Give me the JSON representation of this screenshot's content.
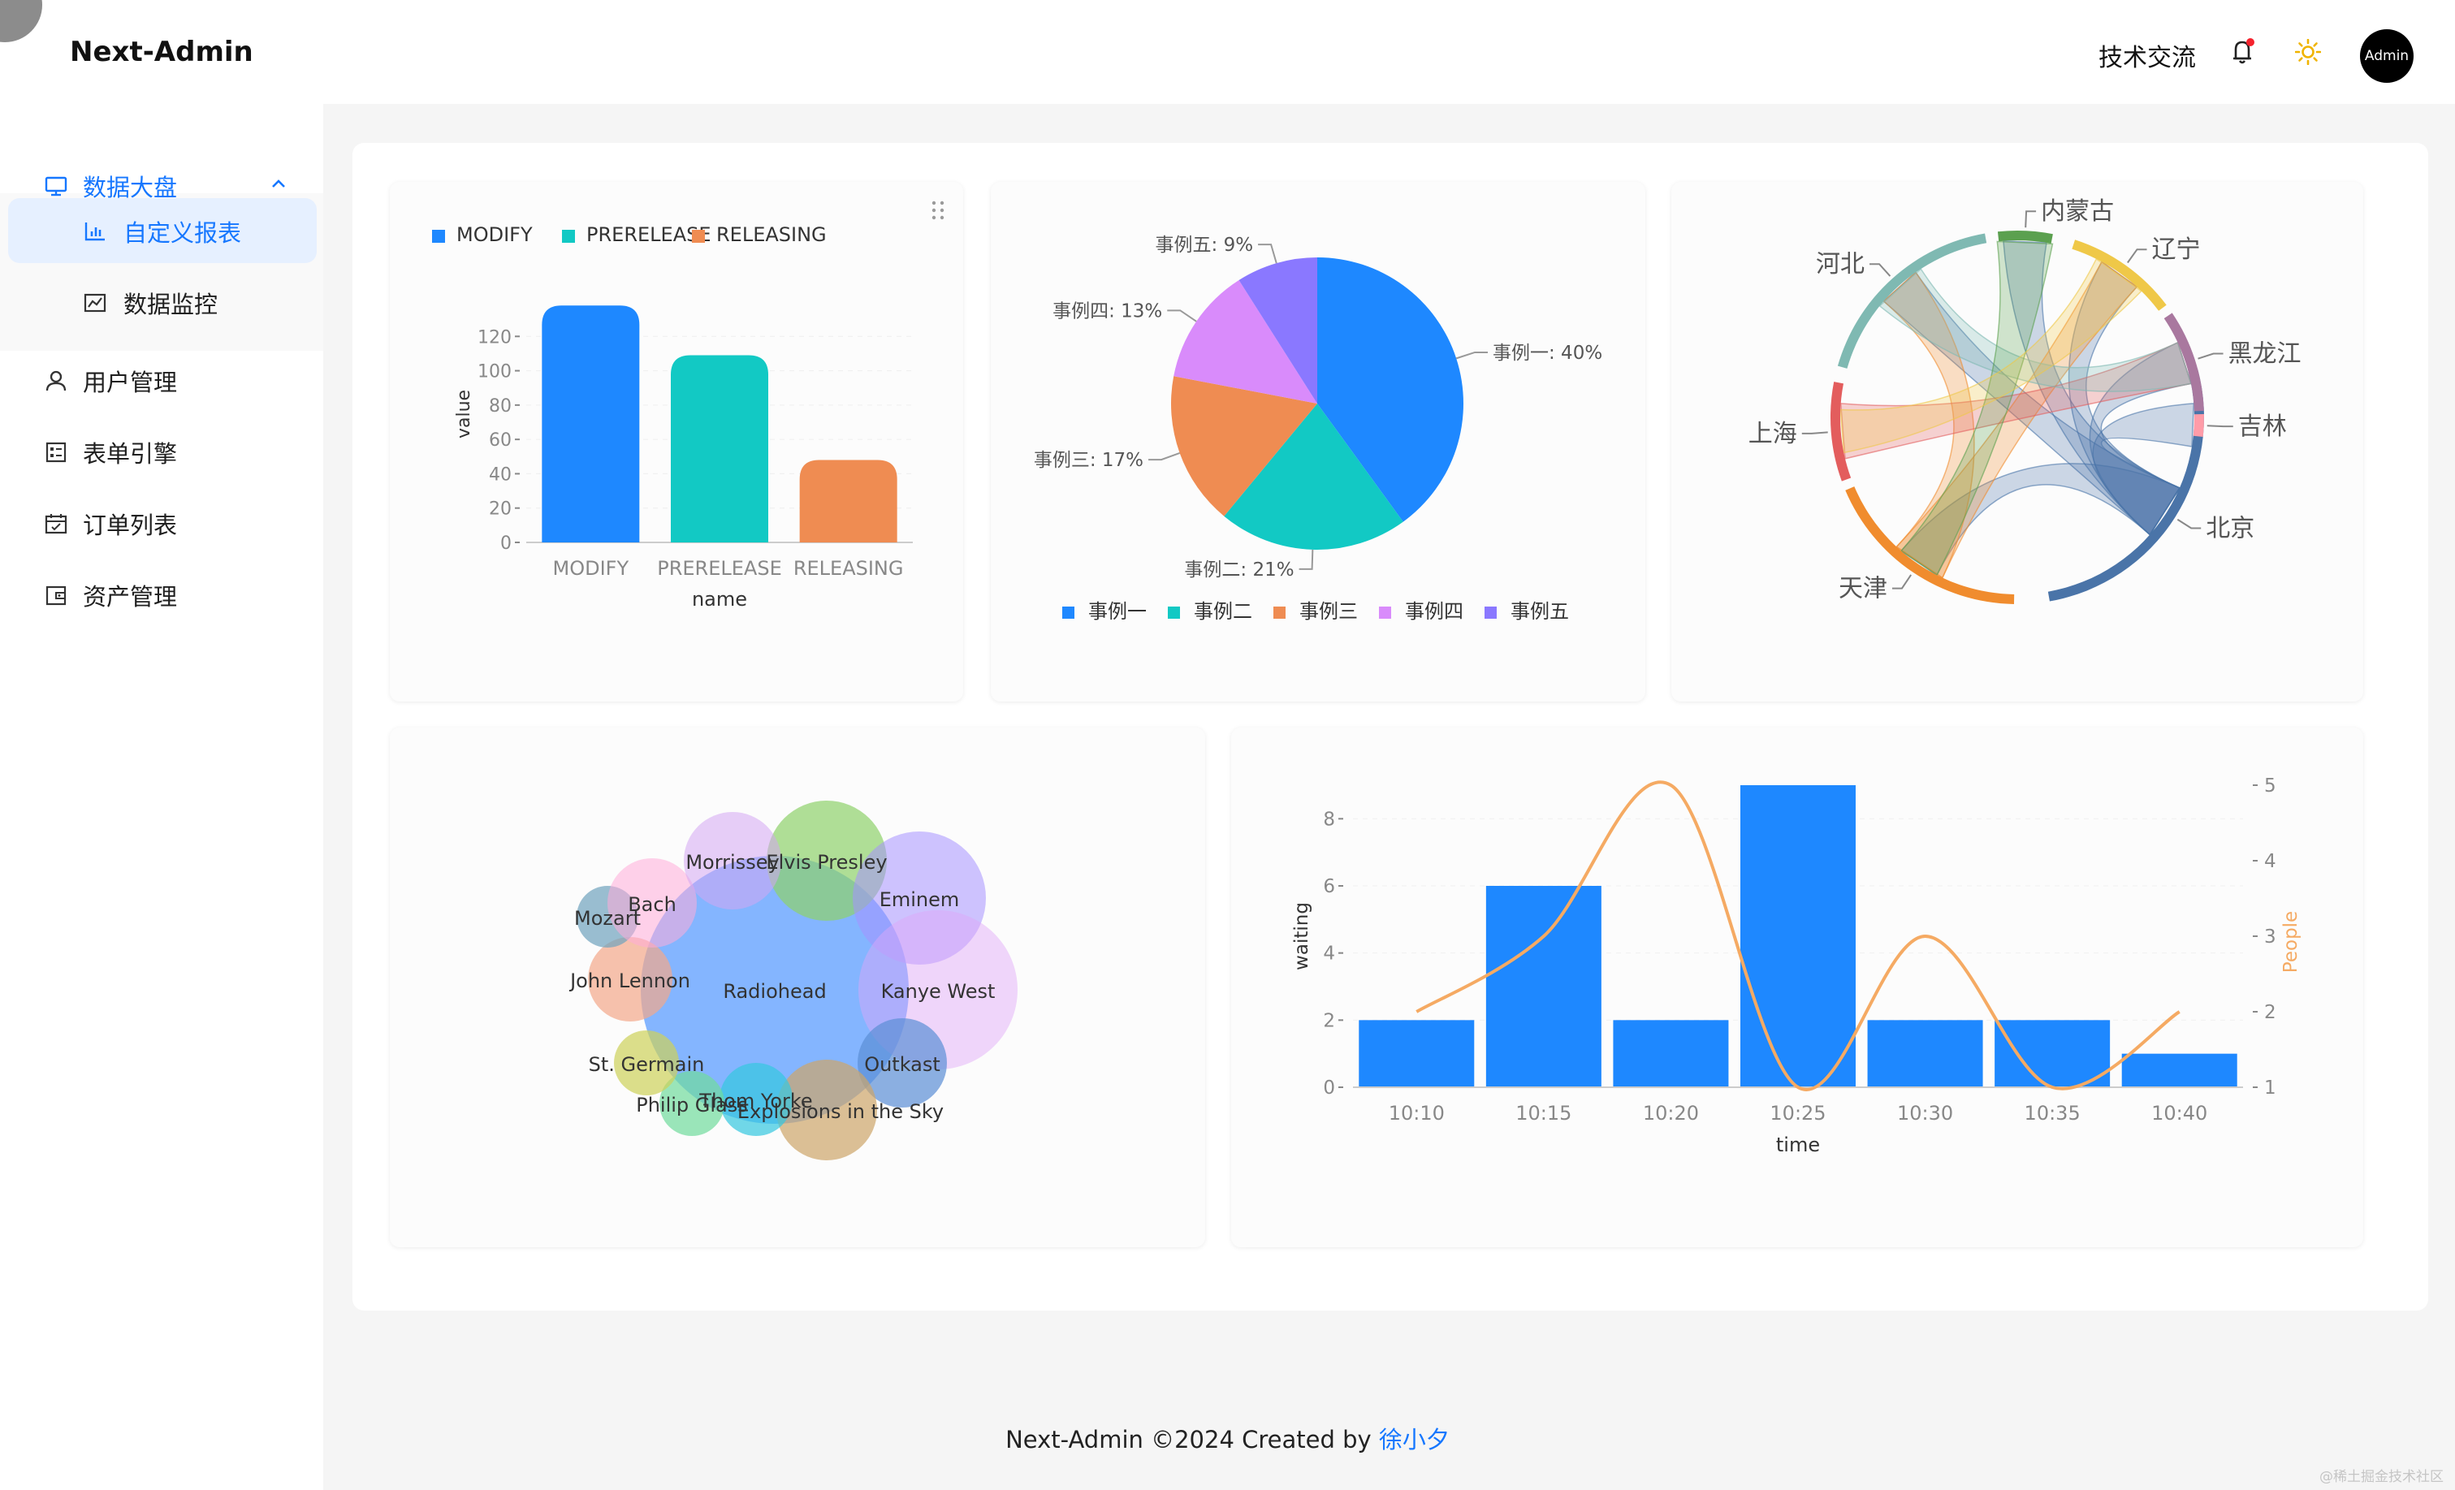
{
  "app": {
    "title": "Next-Admin"
  },
  "header": {
    "link_label": "技术交流",
    "avatar_label": "Admin"
  },
  "sidebar": {
    "items": [
      {
        "label": "数据大盘",
        "icon": "monitor-icon",
        "expanded": true,
        "children": [
          {
            "label": "自定义报表",
            "icon": "bar-chart-icon",
            "selected": true
          },
          {
            "label": "数据监控",
            "icon": "line-chart-icon"
          }
        ]
      },
      {
        "label": "用户管理",
        "icon": "user-icon"
      },
      {
        "label": "表单引擎",
        "icon": "form-icon"
      },
      {
        "label": "订单列表",
        "icon": "calendar-icon"
      },
      {
        "label": "资产管理",
        "icon": "wallet-icon"
      }
    ]
  },
  "colors": {
    "accent": "#1677ff",
    "blue": "#1e88ff",
    "teal": "#12c9c4",
    "orange": "#ef8c52",
    "violet": "#d98bfb",
    "purple": "#8a78ff",
    "line": "#f5aa63"
  },
  "chart_data": [
    {
      "type": "bar",
      "categories": [
        "MODIFY",
        "PRERELEASE",
        "RELEASING"
      ],
      "values": [
        138,
        109,
        48
      ],
      "colors": [
        "#1e88ff",
        "#12c9c4",
        "#ef8c52"
      ],
      "legend": [
        "MODIFY",
        "PRERELEASE",
        "RELEASING"
      ],
      "xlabel": "name",
      "ylabel": "value",
      "yticks": [
        0,
        20,
        40,
        60,
        80,
        100,
        120
      ]
    },
    {
      "type": "pie",
      "labels": [
        "事例一",
        "事例二",
        "事例三",
        "事例四",
        "事例五"
      ],
      "values": [
        40,
        21,
        17,
        13,
        9
      ],
      "slice_labels": [
        "事例一: 40%",
        "事例二: 21%",
        "事例三: 17%",
        "事例四: 13%",
        "事例五: 9%"
      ],
      "colors": [
        "#1e88ff",
        "#12c9c4",
        "#ef8c52",
        "#d98bfb",
        "#8a78ff"
      ],
      "legend": "bottom"
    },
    {
      "type": "chord",
      "nodes": [
        "北京",
        "天津",
        "上海",
        "河北",
        "内蒙古",
        "辽宁",
        "黑龙江",
        "吉林"
      ],
      "colors": [
        "#4a74a8",
        "#f08c2e",
        "#e35d5d",
        "#7fb9b2",
        "#5ba04f",
        "#efc848",
        "#a9789f",
        "#ff9ca8"
      ]
    },
    {
      "type": "bubble",
      "items": [
        "Radiohead",
        "Elvis Presley",
        "Eminem",
        "Kanye West",
        "Outkast",
        "Explosions in the Sky",
        "Thom Yorke",
        "Philip Glass",
        "St. Germain",
        "John Lennon",
        "Mozart",
        "Bach",
        "Morrissey"
      ]
    },
    {
      "type": "bar",
      "categories": [
        "10:10",
        "10:15",
        "10:20",
        "10:25",
        "10:30",
        "10:35",
        "10:40"
      ],
      "values": [
        2,
        6,
        2,
        9,
        2,
        2,
        1
      ],
      "xlabel": "time",
      "ylabel": "waiting",
      "yticks": [
        0,
        2,
        4,
        6,
        8
      ],
      "series": [
        {
          "name": "waiting",
          "type": "bar",
          "values": [
            2,
            6,
            2,
            9,
            2,
            2,
            1
          ]
        },
        {
          "name": "People",
          "type": "line",
          "axis": "right",
          "values": [
            2,
            3,
            5,
            1,
            3,
            1,
            2
          ]
        }
      ],
      "y2label": "People",
      "y2ticks": [
        1,
        2,
        3,
        4,
        5
      ]
    }
  ],
  "footer": {
    "text": "Next-Admin ©2024 Created by ",
    "author": "徐小夕"
  },
  "watermark": "@稀土掘金技术社区"
}
